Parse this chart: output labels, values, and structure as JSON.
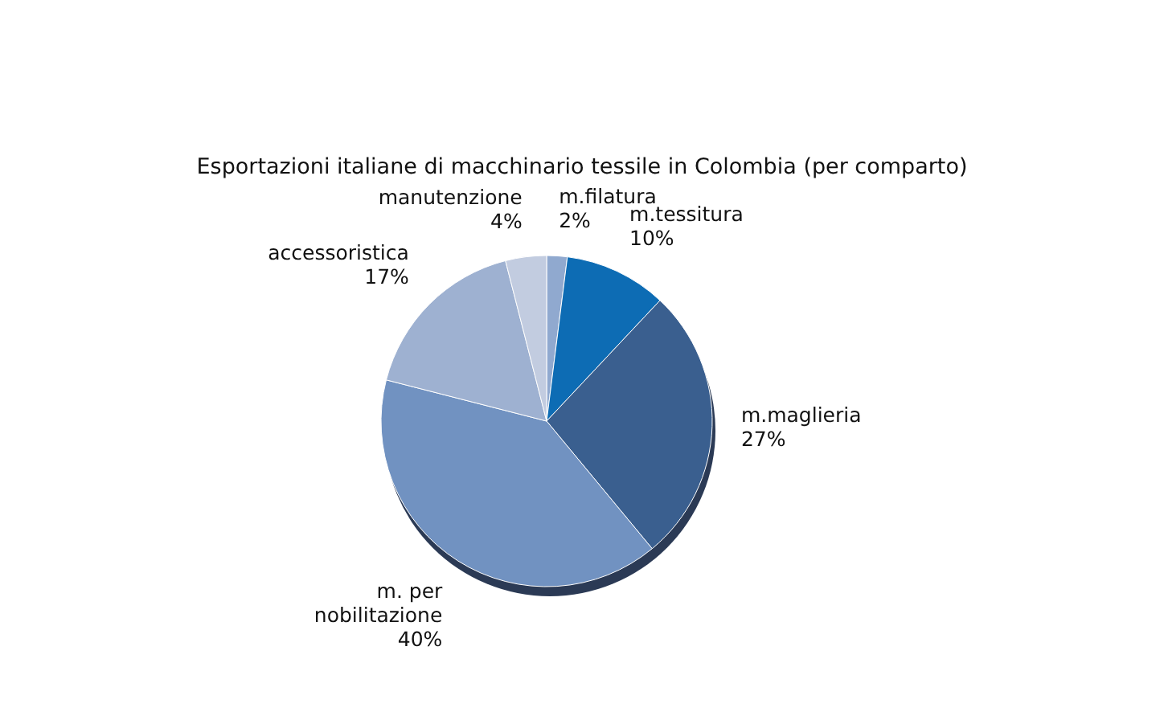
{
  "chart_data": {
    "type": "pie",
    "title": "Esportazioni italiane di macchinario tessile in Colombia (per comparto)",
    "categories": [
      "m.filatura",
      "m.tessitura",
      "m.maglieria",
      "m. per nobilitazione",
      "accessoristica",
      "manutenzione"
    ],
    "values": [
      2,
      10,
      27,
      40,
      17,
      4
    ],
    "value_labels": [
      "2%",
      "10%",
      "27%",
      "40%",
      "17%",
      "4%"
    ],
    "colors": [
      "#90a9cf",
      "#0d6cb4",
      "#3a5f8f",
      "#7192c1",
      "#9eb1d1",
      "#c2cce0"
    ]
  }
}
